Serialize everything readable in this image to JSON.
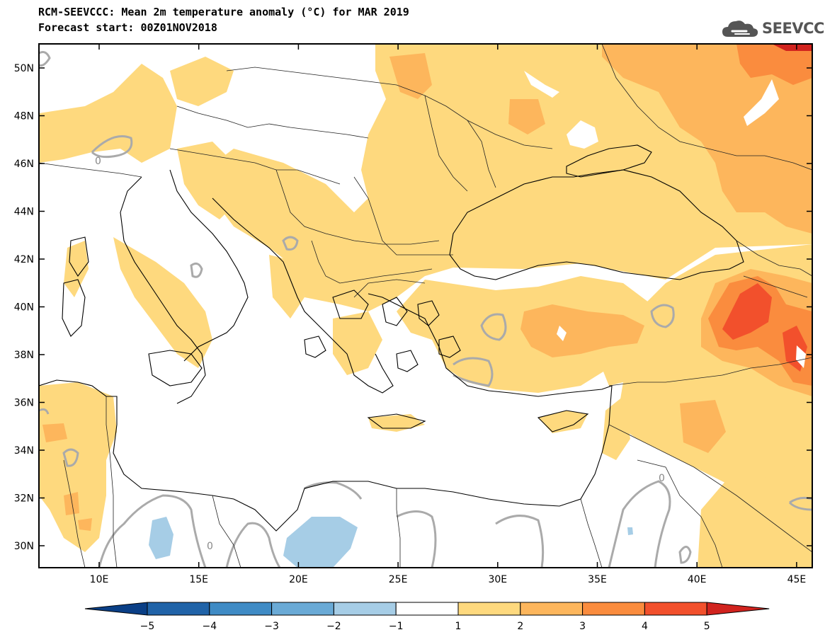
{
  "header": {
    "title": "RCM-SEEVCCC: Mean 2m temperature anomaly (°C) for MAR 2019",
    "subtitle": "Forecast start: 00Z01NOV2018"
  },
  "logo": {
    "text": "SEEVCCC",
    "icon": "cloud-logo-icon"
  },
  "map": {
    "lat_labels": [
      "50N",
      "48N",
      "46N",
      "44N",
      "42N",
      "40N",
      "38N",
      "36N",
      "34N",
      "32N",
      "30N"
    ],
    "lon_labels": [
      "10E",
      "15E",
      "20E",
      "25E",
      "30E",
      "35E",
      "40E",
      "45E"
    ],
    "contour_labels": [
      "0",
      "0",
      "0"
    ]
  },
  "colorbar": {
    "ticks": [
      "−5",
      "−4",
      "−3",
      "−2",
      "−1",
      "1",
      "2",
      "3",
      "4",
      "5"
    ],
    "colors": [
      "#0a3f86",
      "#2063a8",
      "#3f8bc5",
      "#6aaad6",
      "#a6cde6",
      "#ffffff",
      "#fed97e",
      "#fdb65c",
      "#fa8c3e",
      "#f2502c",
      "#d1231e"
    ]
  }
}
